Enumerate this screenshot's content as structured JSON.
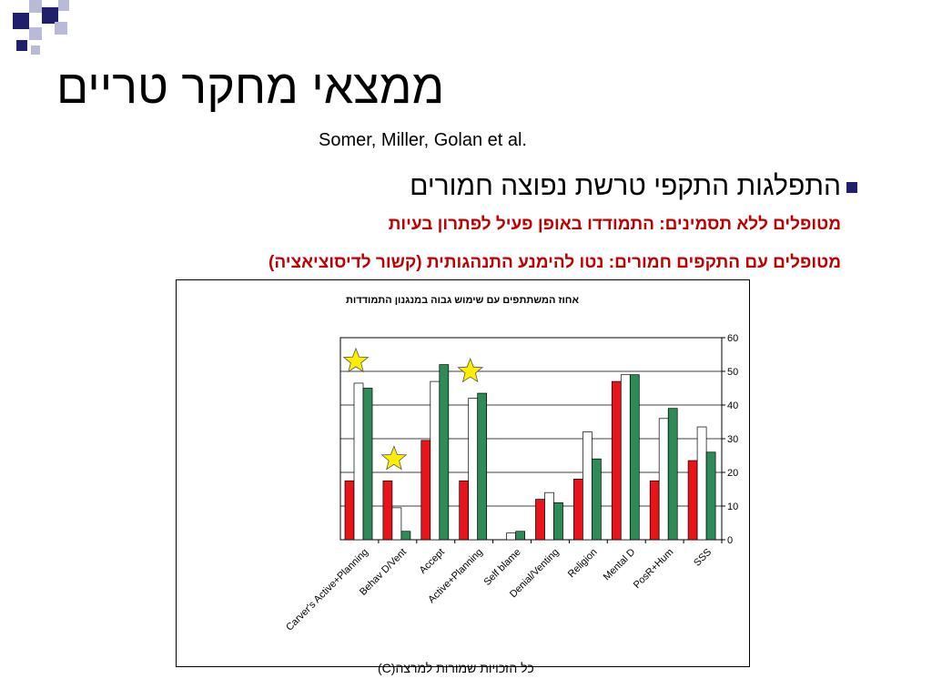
{
  "slide": {
    "title": "ממצאי מחקר טריים",
    "subtitle": "Somer, Miller, Golan et al.",
    "bullet": "התפלגות התקפי טרשת נפוצה חמורים",
    "line1": "מטופלים ללא תסמינים: התמודדו באופן פעיל לפתרון בעיות",
    "line2": "מטופלים עם התקפים חמורים:  נטו להימנע  התנהגותית (קשור לדיסוציאציה)",
    "footer": "כל הזכויות שמורות למרצה(C)"
  },
  "colors": {
    "accent_navy": "#1f1f6b",
    "accent_light": "#b9b9d8",
    "red_text": "#c00000",
    "series_red": "#e8141a",
    "series_white": "#ffffff",
    "series_green": "#2e8b57",
    "star_fill": "#ffee00"
  },
  "chart_data": {
    "type": "bar",
    "title": "אחוז המשתתפים עם שימוש גבוה במנגנון התמודדות",
    "categories": [
      "Carver's Active+Planning",
      "Behav D/Vent",
      "Accept",
      "Active+Planning",
      "Self blame",
      "Denial/Venting",
      "Religion",
      "Mental D",
      "PosR+Hum",
      "SSS"
    ],
    "series": [
      {
        "values": [
          17.5,
          17.5,
          29.5,
          17.5,
          0,
          12,
          18,
          47,
          17.5,
          23.5
        ],
        "color": "#e8141a"
      },
      {
        "values": [
          46.5,
          9.5,
          47,
          42,
          2,
          14,
          32,
          49,
          36,
          33.5
        ],
        "color": "#ffffff"
      },
      {
        "values": [
          45,
          2.5,
          52,
          43.5,
          2.5,
          11,
          24,
          49,
          39,
          26
        ],
        "color": "#2e8b57"
      }
    ],
    "ylim": [
      0,
      60
    ],
    "yticks": [
      0,
      10,
      20,
      30,
      40,
      50,
      60
    ],
    "y_axis_side": "right",
    "grid": true,
    "star_markers_on_categories": [
      "Carver's Active+Planning",
      "Behav D/Vent",
      "Active+Planning"
    ]
  }
}
